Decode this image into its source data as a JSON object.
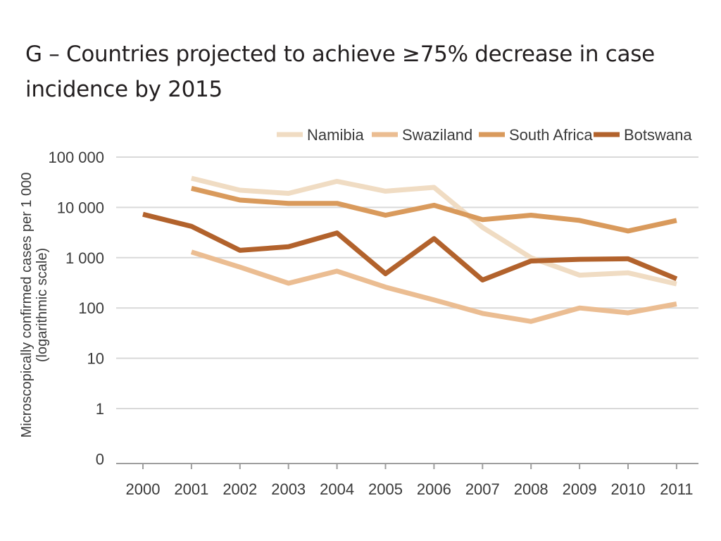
{
  "chart_data": {
    "type": "line",
    "title": "G – Countries projected to achieve ≥75% decrease in case incidence by 2015",
    "ylabel": [
      "Microscopically confirmed cases per 1 000",
      "(logarithmic scale)"
    ],
    "xlabel": "",
    "yscale": "log",
    "y_tick_labels": [
      "0",
      "1",
      "10",
      "100",
      "1 000",
      "10 000",
      "100 000"
    ],
    "y_tick_values": [
      0.1,
      1,
      10,
      100,
      1000,
      10000,
      100000
    ],
    "x": [
      "2000",
      "2001",
      "2002",
      "2003",
      "2004",
      "2005",
      "2006",
      "2007",
      "2008",
      "2009",
      "2010",
      "2011"
    ],
    "grid": "horizontal",
    "legend_position": "top-right",
    "series": [
      {
        "name": "Namibia",
        "color": "#f0dcc3",
        "values": [
          null,
          38000,
          22000,
          19000,
          33000,
          21000,
          25000,
          4000,
          1000,
          450,
          500,
          300
        ]
      },
      {
        "name": "Swaziland",
        "color": "#ebbd92",
        "values": [
          null,
          1300,
          650,
          310,
          540,
          260,
          145,
          78,
          54,
          100,
          80,
          120
        ]
      },
      {
        "name": "South Africa",
        "color": "#d99a5c",
        "values": [
          null,
          24000,
          14000,
          12000,
          12000,
          7000,
          11000,
          5700,
          7000,
          5500,
          3400,
          5500
        ]
      },
      {
        "name": "Botswana",
        "color": "#b2622c",
        "values": [
          7300,
          4200,
          1400,
          1650,
          3100,
          480,
          2400,
          360,
          860,
          930,
          950,
          380
        ]
      }
    ]
  }
}
